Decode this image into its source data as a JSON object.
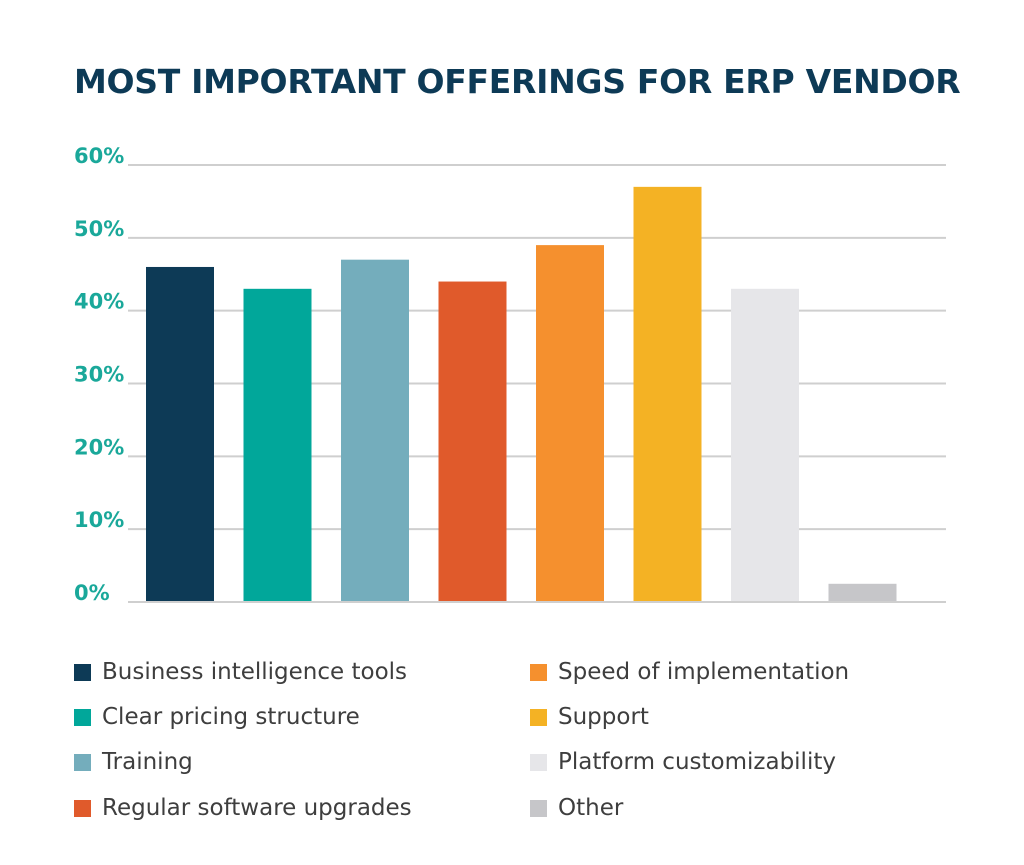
{
  "chart_data": {
    "type": "bar",
    "title": "MOST IMPORTANT OFFERINGS FOR ERP VENDOR",
    "xlabel": "",
    "ylabel": "",
    "ylim": [
      0,
      60
    ],
    "yticks": [
      0,
      10,
      20,
      30,
      40,
      50,
      60
    ],
    "ytick_labels": [
      "0%",
      "10%",
      "20%",
      "30%",
      "40%",
      "50%",
      "60%"
    ],
    "grid": true,
    "legend_position": "bottom",
    "categories": [
      "Business intelligence tools",
      "Clear pricing structure",
      "Training",
      "Regular software upgrades",
      "Speed of implementation",
      "Support",
      "Platform customizability",
      "Other"
    ],
    "values": [
      46,
      43,
      47,
      44,
      49,
      57,
      43,
      2.5
    ],
    "colors": [
      "#0d3a56",
      "#01a79a",
      "#74adbc",
      "#e05a2b",
      "#f5902e",
      "#f4b224",
      "#e6e6e9",
      "#c6c6c9"
    ]
  },
  "colors": {
    "title": "#0d3a56",
    "tick_labels": "#1aa89a",
    "gridline": "#cfcfcf",
    "legend_text": "#3e3e3e"
  }
}
